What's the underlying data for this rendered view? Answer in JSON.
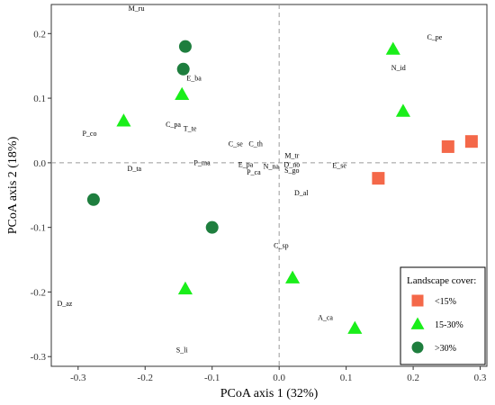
{
  "chart_data": {
    "type": "scatter",
    "xlabel": "PCoA axis 1 (32%)",
    "ylabel": "PCoA axis 2 (18%)",
    "xlim": [
      -0.34,
      0.31
    ],
    "ylim": [
      -0.315,
      0.245
    ],
    "xticks": [
      -0.3,
      -0.2,
      -0.1,
      0.0,
      0.1,
      0.2,
      0.3
    ],
    "yticks": [
      -0.3,
      -0.2,
      -0.1,
      0.0,
      0.1,
      0.2
    ],
    "xtick_labels": [
      "-0.3",
      "-0.2",
      "-0.1",
      "0.0",
      "0.1",
      "0.2",
      "0.3"
    ],
    "ytick_labels": [
      "-0.3",
      "-0.2",
      "-0.1",
      "0.0",
      "0.1",
      "0.2"
    ],
    "grid": false,
    "reference_lines": {
      "x": 0,
      "y": 0,
      "style": "dashed"
    },
    "legend": {
      "title": "Landscape cover:",
      "position": "bottom-right",
      "entries": [
        {
          "label": "<15%",
          "shape": "square",
          "color": "#f46849"
        },
        {
          "label": "15-30%",
          "shape": "triangle",
          "color": "#1aee1a"
        },
        {
          "label": ">30%",
          "shape": "circle",
          "color": "#1e7e3e"
        }
      ]
    },
    "series": [
      {
        "name": "<15%",
        "shape": "square",
        "color": "#f46849",
        "points": [
          {
            "x": 0.148,
            "y": -0.024
          },
          {
            "x": 0.252,
            "y": 0.025
          },
          {
            "x": 0.287,
            "y": 0.033
          }
        ]
      },
      {
        "name": "15-30%",
        "shape": "triangle",
        "color": "#1aee1a",
        "points": [
          {
            "x": -0.232,
            "y": 0.065
          },
          {
            "x": -0.145,
            "y": 0.106
          },
          {
            "x": -0.14,
            "y": -0.195
          },
          {
            "x": 0.02,
            "y": -0.178
          },
          {
            "x": 0.113,
            "y": -0.256
          },
          {
            "x": 0.17,
            "y": 0.176
          },
          {
            "x": 0.185,
            "y": 0.08
          }
        ]
      },
      {
        "name": ">30%",
        "shape": "circle",
        "color": "#1e7e3e",
        "points": [
          {
            "x": -0.14,
            "y": 0.18
          },
          {
            "x": -0.143,
            "y": 0.145
          },
          {
            "x": -0.277,
            "y": -0.057
          },
          {
            "x": -0.1,
            "y": -0.1
          }
        ]
      }
    ],
    "annotations": [
      {
        "text": "M_ru",
        "x": -0.213,
        "y": 0.238
      },
      {
        "text": "C_pe",
        "x": 0.232,
        "y": 0.193
      },
      {
        "text": "N_id",
        "x": 0.178,
        "y": 0.146
      },
      {
        "text": "E_ba",
        "x": -0.127,
        "y": 0.13
      },
      {
        "text": "C_pa",
        "x": -0.158,
        "y": 0.058
      },
      {
        "text": "T_te",
        "x": -0.133,
        "y": 0.052
      },
      {
        "text": "P_co",
        "x": -0.283,
        "y": 0.044
      },
      {
        "text": "C_se",
        "x": -0.065,
        "y": 0.028
      },
      {
        "text": "C_th",
        "x": -0.035,
        "y": 0.028
      },
      {
        "text": "M_tr",
        "x": 0.019,
        "y": 0.01
      },
      {
        "text": "P_ma",
        "x": -0.115,
        "y": -0.001
      },
      {
        "text": "E_pa",
        "x": -0.05,
        "y": -0.004
      },
      {
        "text": "N_na",
        "x": -0.012,
        "y": -0.007
      },
      {
        "text": "D_no",
        "x": 0.019,
        "y": -0.004
      },
      {
        "text": "E_se",
        "x": 0.09,
        "y": -0.005
      },
      {
        "text": "D_ta",
        "x": -0.216,
        "y": -0.01
      },
      {
        "text": "P_ca",
        "x": -0.038,
        "y": -0.016
      },
      {
        "text": "S_go",
        "x": 0.019,
        "y": -0.013
      },
      {
        "text": "D_al",
        "x": 0.033,
        "y": -0.048
      },
      {
        "text": "C_sp",
        "x": 0.003,
        "y": -0.129
      },
      {
        "text": "D_az",
        "x": -0.32,
        "y": -0.219
      },
      {
        "text": "A_ca",
        "x": 0.069,
        "y": -0.241
      },
      {
        "text": "S_li",
        "x": -0.145,
        "y": -0.291
      }
    ]
  }
}
